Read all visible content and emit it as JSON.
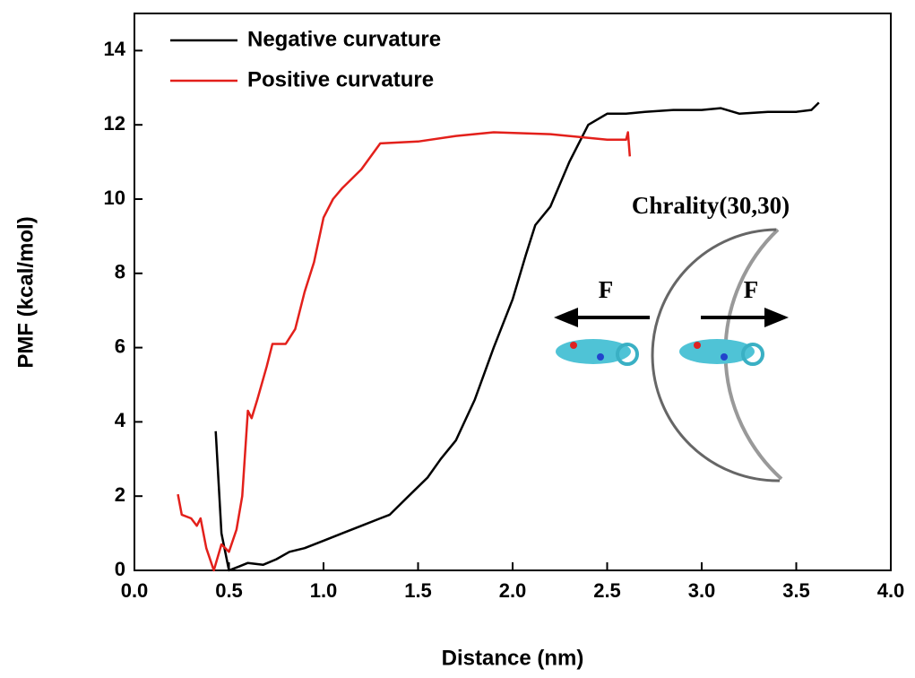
{
  "chart_data": {
    "type": "line",
    "xlabel": "Distance (nm)",
    "ylabel": "PMF (kcal/mol)",
    "xlim": [
      0,
      4
    ],
    "ylim": [
      0,
      15
    ],
    "xticks": [
      {
        "value": 0,
        "label": "0.0"
      },
      0.5,
      {
        "value": 1,
        "label": "1.0"
      },
      1.5,
      {
        "value": 2,
        "label": "2.0"
      },
      2.5,
      {
        "value": 3,
        "label": "3.0"
      },
      3.5,
      {
        "value": 4,
        "label": "4.0"
      }
    ],
    "yticks": [
      0,
      2,
      4,
      6,
      8,
      10,
      12,
      14
    ],
    "legend": "upper left",
    "annotations": [
      "Chrality(30,30)",
      "F",
      "F"
    ],
    "series": [
      {
        "name": "Negative curvature",
        "color": "#000000",
        "x": [
          0.43,
          0.46,
          0.5,
          0.55,
          0.6,
          0.68,
          0.75,
          0.82,
          0.9,
          1.0,
          1.1,
          1.2,
          1.3,
          1.35,
          1.45,
          1.55,
          1.62,
          1.7,
          1.8,
          1.9,
          2.0,
          2.07,
          2.12,
          2.2,
          2.3,
          2.4,
          2.5,
          2.6,
          2.7,
          2.85,
          3.0,
          3.1,
          3.2,
          3.35,
          3.5,
          3.58,
          3.62
        ],
        "values": [
          3.75,
          1.0,
          0,
          0.1,
          0.2,
          0.15,
          0.3,
          0.5,
          0.6,
          0.8,
          1.0,
          1.2,
          1.4,
          1.5,
          2.0,
          2.5,
          3.0,
          3.5,
          4.6,
          6.0,
          7.3,
          8.5,
          9.3,
          9.8,
          11.0,
          12.0,
          12.3,
          12.3,
          12.35,
          12.4,
          12.4,
          12.45,
          12.3,
          12.35,
          12.35,
          12.4,
          12.6
        ]
      },
      {
        "name": "Positive curvature",
        "color": "#e3201b",
        "x": [
          0.23,
          0.25,
          0.3,
          0.33,
          0.35,
          0.38,
          0.42,
          0.46,
          0.5,
          0.54,
          0.57,
          0.6,
          0.62,
          0.65,
          0.7,
          0.73,
          0.8,
          0.85,
          0.9,
          0.95,
          1.0,
          1.05,
          1.1,
          1.2,
          1.3,
          1.5,
          1.7,
          1.9,
          2.2,
          2.5,
          2.6,
          2.61,
          2.62
        ],
        "values": [
          2.05,
          1.5,
          1.4,
          1.2,
          1.4,
          0.6,
          0,
          0.7,
          0.5,
          1.1,
          2.0,
          4.3,
          4.1,
          4.6,
          5.5,
          6.1,
          6.1,
          6.5,
          7.5,
          8.3,
          9.5,
          10.0,
          10.3,
          10.8,
          11.5,
          11.55,
          11.7,
          11.8,
          11.75,
          11.6,
          11.6,
          11.8,
          11.15
        ]
      }
    ]
  }
}
